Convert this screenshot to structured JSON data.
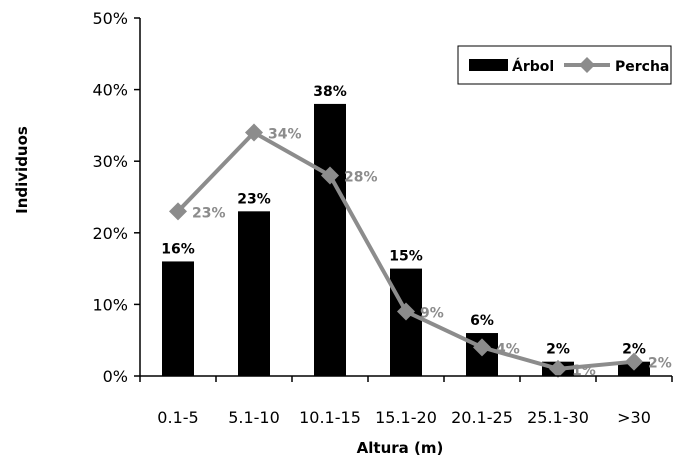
{
  "chart_data": {
    "type": "bar",
    "categories": [
      "0.1-5",
      "5.1-10",
      "10.1-15",
      "15.1-20",
      "20.1-25",
      "25.1-30",
      ">30"
    ],
    "series": [
      {
        "name": "Árbol",
        "kind": "bar",
        "color": "#000000",
        "values": [
          16,
          23,
          38,
          15,
          6,
          2,
          2
        ],
        "labels": [
          "16%",
          "23%",
          "38%",
          "15%",
          "6%",
          "2%",
          "2%"
        ]
      },
      {
        "name": "Percha",
        "kind": "line",
        "color": "#8c8c8c",
        "marker": "diamond",
        "values": [
          23,
          34,
          28,
          9,
          4,
          1,
          2
        ],
        "labels": [
          "23%",
          "34%",
          "28%",
          "9%",
          "4%",
          "1%",
          "2%"
        ]
      }
    ],
    "xlabel": "Altura (m)",
    "ylabel": "Individuos",
    "ylim": [
      0,
      50
    ],
    "yticks": [
      "0%",
      "10%",
      "20%",
      "30%",
      "40%",
      "50%"
    ],
    "grid": false,
    "legend": "top-right"
  }
}
